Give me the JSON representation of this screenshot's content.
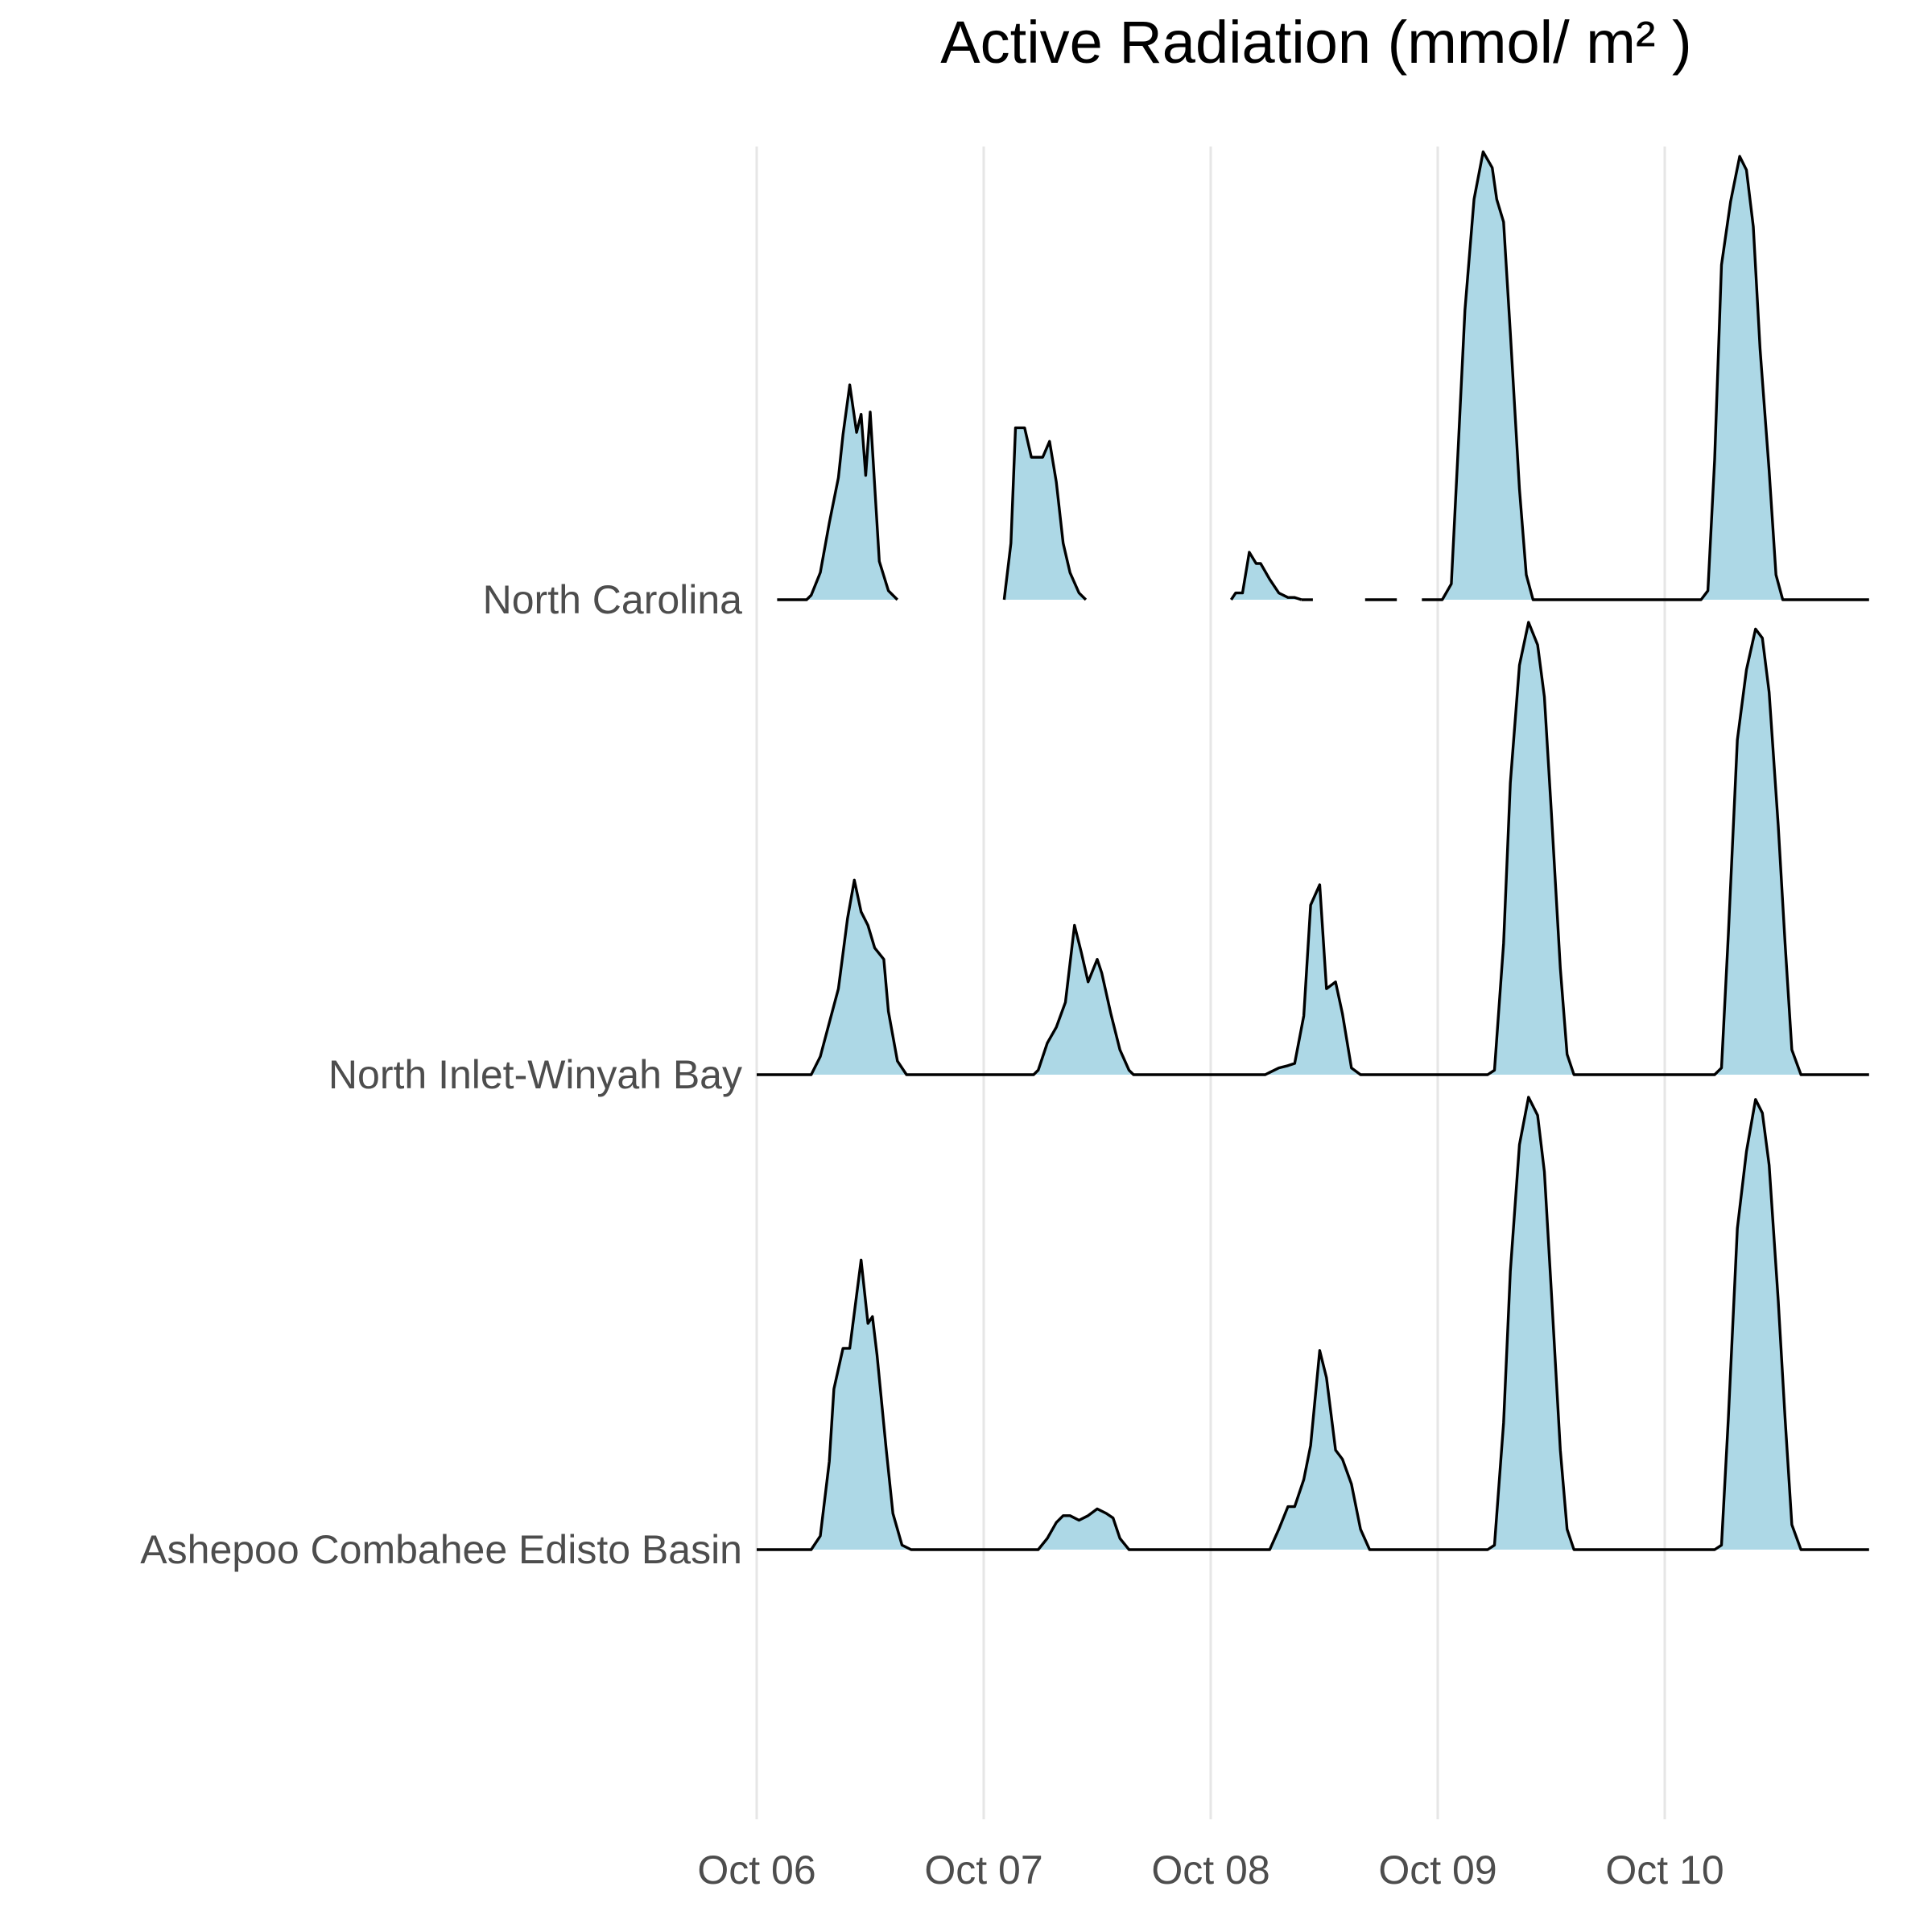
{
  "chart_data": {
    "type": "area",
    "subtype": "ridgeline",
    "title_lines": [
      "",
      "Active Radiation (mmol/ m² )"
    ],
    "fill_color": "#add8e6",
    "line_color": "#000000",
    "grid": "vertical",
    "x_ticks": [
      "Oct 06",
      "Oct 07",
      "Oct 08",
      "Oct 09",
      "Oct 10"
    ],
    "xlim": [
      0,
      4.9
    ],
    "series": [
      {
        "name": "North Carolina",
        "segments": [
          [
            [
              0.09,
              0
            ],
            [
              0.22,
              0
            ],
            [
              0.24,
              0.02
            ],
            [
              0.28,
              0.12
            ],
            [
              0.32,
              0.34
            ],
            [
              0.36,
              0.54
            ],
            [
              0.38,
              0.73
            ],
            [
              0.41,
              0.95
            ],
            [
              0.44,
              0.74
            ],
            [
              0.46,
              0.82
            ],
            [
              0.48,
              0.55
            ],
            [
              0.5,
              0.83
            ],
            [
              0.54,
              0.17
            ],
            [
              0.58,
              0.04
            ],
            [
              0.62,
              0
            ]
          ],
          [
            [
              1.09,
              0
            ],
            [
              1.12,
              0.25
            ],
            [
              1.14,
              0.76
            ],
            [
              1.18,
              0.76
            ],
            [
              1.21,
              0.63
            ],
            [
              1.26,
              0.63
            ],
            [
              1.29,
              0.7
            ],
            [
              1.32,
              0.52
            ],
            [
              1.35,
              0.25
            ],
            [
              1.38,
              0.12
            ],
            [
              1.42,
              0.03
            ],
            [
              1.45,
              0
            ]
          ],
          [
            [
              2.09,
              0
            ],
            [
              2.11,
              0.03
            ],
            [
              2.14,
              0.03
            ],
            [
              2.17,
              0.21
            ],
            [
              2.2,
              0.16
            ],
            [
              2.22,
              0.16
            ],
            [
              2.26,
              0.09
            ],
            [
              2.3,
              0.03
            ],
            [
              2.34,
              0.01
            ],
            [
              2.37,
              0.01
            ],
            [
              2.4,
              0
            ]
          ],
          [
            [
              2.4,
              0
            ],
            [
              2.45,
              0
            ]
          ],
          [
            [
              2.68,
              0
            ],
            [
              2.82,
              0
            ]
          ],
          [
            [
              2.93,
              0
            ],
            [
              3.02,
              0
            ],
            [
              3.06,
              0.07
            ],
            [
              3.09,
              0.67
            ],
            [
              3.12,
              1.28
            ],
            [
              3.16,
              1.77
            ],
            [
              3.2,
              1.98
            ],
            [
              3.24,
              1.91
            ],
            [
              3.26,
              1.77
            ],
            [
              3.29,
              1.67
            ],
            [
              3.32,
              1.18
            ],
            [
              3.36,
              0.49
            ],
            [
              3.39,
              0.11
            ],
            [
              3.42,
              0
            ],
            [
              4.0,
              0
            ],
            [
              4.16,
              0
            ],
            [
              4.19,
              0.04
            ],
            [
              4.22,
              0.62
            ],
            [
              4.25,
              1.48
            ],
            [
              4.29,
              1.76
            ],
            [
              4.33,
              1.96
            ],
            [
              4.36,
              1.9
            ],
            [
              4.39,
              1.65
            ],
            [
              4.42,
              1.11
            ],
            [
              4.46,
              0.57
            ],
            [
              4.49,
              0.11
            ],
            [
              4.52,
              0
            ],
            [
              4.9,
              0
            ]
          ]
        ]
      },
      {
        "name": "North Inlet-Winyah Bay",
        "segments": [
          [
            [
              0.0,
              0
            ],
            [
              0.24,
              0
            ],
            [
              0.28,
              0.08
            ],
            [
              0.32,
              0.23
            ],
            [
              0.36,
              0.38
            ],
            [
              0.4,
              0.69
            ],
            [
              0.43,
              0.86
            ],
            [
              0.46,
              0.72
            ],
            [
              0.49,
              0.66
            ],
            [
              0.52,
              0.56
            ],
            [
              0.56,
              0.51
            ],
            [
              0.58,
              0.28
            ],
            [
              0.62,
              0.06
            ],
            [
              0.66,
              0
            ],
            [
              1.0,
              0
            ],
            [
              1.22,
              0
            ],
            [
              1.24,
              0.02
            ],
            [
              1.28,
              0.14
            ],
            [
              1.32,
              0.21
            ],
            [
              1.36,
              0.32
            ],
            [
              1.4,
              0.66
            ],
            [
              1.43,
              0.54
            ],
            [
              1.46,
              0.41
            ],
            [
              1.5,
              0.51
            ],
            [
              1.52,
              0.45
            ],
            [
              1.56,
              0.27
            ],
            [
              1.6,
              0.11
            ],
            [
              1.64,
              0.02
            ],
            [
              1.66,
              0
            ],
            [
              2.0,
              0
            ],
            [
              2.24,
              0
            ],
            [
              2.26,
              0.01
            ],
            [
              2.3,
              0.03
            ],
            [
              2.34,
              0.04
            ],
            [
              2.37,
              0.05
            ],
            [
              2.41,
              0.26
            ],
            [
              2.44,
              0.75
            ],
            [
              2.48,
              0.84
            ],
            [
              2.51,
              0.38
            ],
            [
              2.55,
              0.41
            ],
            [
              2.58,
              0.27
            ],
            [
              2.62,
              0.03
            ],
            [
              2.66,
              0
            ],
            [
              3.0,
              0
            ],
            [
              3.22,
              0
            ],
            [
              3.25,
              0.02
            ],
            [
              3.29,
              0.58
            ],
            [
              3.32,
              1.29
            ],
            [
              3.36,
              1.81
            ],
            [
              3.4,
              2.0
            ],
            [
              3.44,
              1.9
            ],
            [
              3.47,
              1.67
            ],
            [
              3.5,
              1.17
            ],
            [
              3.54,
              0.47
            ],
            [
              3.57,
              0.09
            ],
            [
              3.6,
              0
            ],
            [
              4.0,
              0
            ],
            [
              4.22,
              0
            ],
            [
              4.25,
              0.03
            ],
            [
              4.28,
              0.62
            ],
            [
              4.32,
              1.48
            ],
            [
              4.36,
              1.79
            ],
            [
              4.4,
              1.97
            ],
            [
              4.43,
              1.93
            ],
            [
              4.46,
              1.69
            ],
            [
              4.5,
              1.1
            ],
            [
              4.53,
              0.58
            ],
            [
              4.56,
              0.11
            ],
            [
              4.6,
              0
            ],
            [
              4.9,
              0
            ]
          ]
        ]
      },
      {
        "name": "Ashepoo Combahee Edisto Basin",
        "segments": [
          [
            [
              0.0,
              0
            ],
            [
              0.24,
              0
            ],
            [
              0.28,
              0.06
            ],
            [
              0.32,
              0.39
            ],
            [
              0.34,
              0.71
            ],
            [
              0.38,
              0.89
            ],
            [
              0.41,
              0.89
            ],
            [
              0.46,
              1.28
            ],
            [
              0.49,
              1.0
            ],
            [
              0.51,
              1.03
            ],
            [
              0.53,
              0.86
            ],
            [
              0.57,
              0.45
            ],
            [
              0.6,
              0.16
            ],
            [
              0.64,
              0.02
            ],
            [
              0.68,
              0
            ],
            [
              1.0,
              0
            ],
            [
              1.24,
              0
            ],
            [
              1.28,
              0.05
            ],
            [
              1.32,
              0.12
            ],
            [
              1.35,
              0.15
            ],
            [
              1.38,
              0.15
            ],
            [
              1.42,
              0.13
            ],
            [
              1.46,
              0.15
            ],
            [
              1.5,
              0.18
            ],
            [
              1.54,
              0.16
            ],
            [
              1.57,
              0.14
            ],
            [
              1.6,
              0.05
            ],
            [
              1.64,
              0
            ],
            [
              2.0,
              0
            ],
            [
              2.26,
              0
            ],
            [
              2.3,
              0.09
            ],
            [
              2.34,
              0.19
            ],
            [
              2.37,
              0.19
            ],
            [
              2.41,
              0.31
            ],
            [
              2.44,
              0.46
            ],
            [
              2.48,
              0.88
            ],
            [
              2.51,
              0.76
            ],
            [
              2.55,
              0.44
            ],
            [
              2.58,
              0.4
            ],
            [
              2.62,
              0.29
            ],
            [
              2.66,
              0.09
            ],
            [
              2.7,
              0
            ],
            [
              3.0,
              0
            ],
            [
              3.22,
              0
            ],
            [
              3.25,
              0.02
            ],
            [
              3.29,
              0.56
            ],
            [
              3.32,
              1.23
            ],
            [
              3.36,
              1.79
            ],
            [
              3.4,
              2.0
            ],
            [
              3.44,
              1.92
            ],
            [
              3.47,
              1.67
            ],
            [
              3.5,
              1.15
            ],
            [
              3.54,
              0.44
            ],
            [
              3.57,
              0.09
            ],
            [
              3.6,
              0
            ],
            [
              4.0,
              0
            ],
            [
              4.22,
              0
            ],
            [
              4.25,
              0.02
            ],
            [
              4.28,
              0.58
            ],
            [
              4.32,
              1.42
            ],
            [
              4.36,
              1.76
            ],
            [
              4.4,
              1.99
            ],
            [
              4.43,
              1.93
            ],
            [
              4.46,
              1.7
            ],
            [
              4.5,
              1.1
            ],
            [
              4.53,
              0.58
            ],
            [
              4.56,
              0.11
            ],
            [
              4.6,
              0
            ],
            [
              4.9,
              0
            ]
          ]
        ]
      }
    ]
  }
}
